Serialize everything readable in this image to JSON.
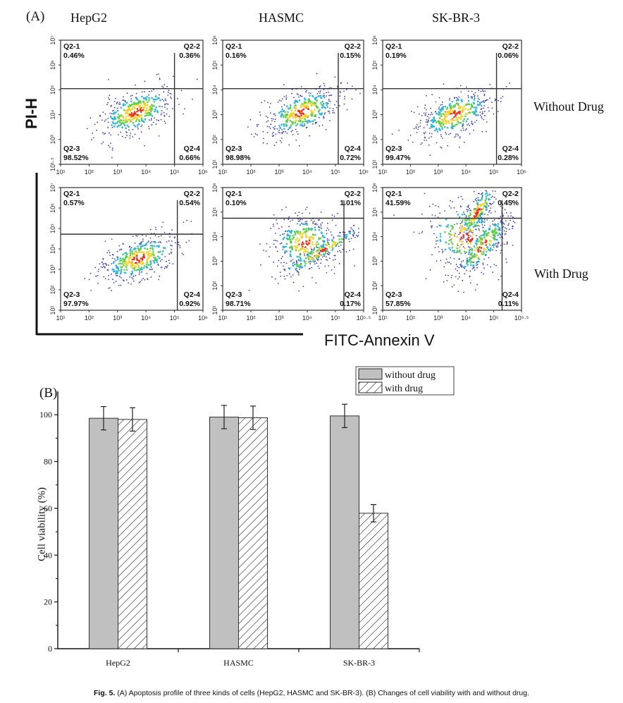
{
  "figure": {
    "panel_a_label": "(A)",
    "panel_b_label": "(B)",
    "columns": [
      "HepG2",
      "HASMC",
      "SK-BR-3"
    ],
    "rows": [
      "Without Drug",
      "With Drug"
    ],
    "y_axis_label": "PI-H",
    "x_axis_label": "FITC-Annexin V",
    "caption_bold": "Fig. 5.",
    "caption_text": " (A) Apoptosis profile of three kinds of cells (HepG2, HASMC and SK-BR-3). (B) Changes of cell viability with and without drug."
  },
  "chart_data": [
    {
      "type": "scatter",
      "title": "Flow cytometry apoptosis profiles (Annexin V / PI)",
      "xlabel": "FITC-Annexin V",
      "ylabel": "PI-H",
      "panels": [
        {
          "cell": "HepG2",
          "condition": "Without Drug",
          "x_ticks": [
            "10¹",
            "10²",
            "10³",
            "10⁴",
            "10⁵",
            "10⁶"
          ],
          "y_ticks": [
            "10¹·⁵",
            "10³",
            "10⁴",
            "10⁵",
            "10⁶",
            "10⁷"
          ],
          "quadrants": [
            {
              "name": "Q2-1",
              "value": "0.46%"
            },
            {
              "name": "Q2-2",
              "value": "0.36%"
            },
            {
              "name": "Q2-3",
              "value": "98.52%"
            },
            {
              "name": "Q2-4",
              "value": "0.66%"
            }
          ]
        },
        {
          "cell": "HASMC",
          "condition": "Without Drug",
          "x_ticks": [
            "10¹",
            "10²",
            "10³",
            "10⁴",
            "10⁵",
            "10⁶"
          ],
          "y_ticks": [
            "10¹",
            "10²",
            "10³",
            "10⁴",
            "10⁵",
            "10⁶"
          ],
          "quadrants": [
            {
              "name": "Q2-1",
              "value": "0.16%"
            },
            {
              "name": "Q2-2",
              "value": "0.15%"
            },
            {
              "name": "Q2-3",
              "value": "98.98%"
            },
            {
              "name": "Q2-4",
              "value": "0.72%"
            }
          ]
        },
        {
          "cell": "SK-BR-3",
          "condition": "Without Drug",
          "x_ticks": [
            "10¹",
            "10²",
            "10³",
            "10⁴",
            "10⁵",
            "10⁶"
          ],
          "y_ticks": [
            "10¹",
            "10²",
            "10³",
            "10⁴",
            "10⁵",
            "10⁶"
          ],
          "quadrants": [
            {
              "name": "Q2-1",
              "value": "0.19%"
            },
            {
              "name": "Q2-2",
              "value": "0.06%"
            },
            {
              "name": "Q2-3",
              "value": "99.47%"
            },
            {
              "name": "Q2-4",
              "value": "0.28%"
            }
          ]
        },
        {
          "cell": "HepG2",
          "condition": "With Drug",
          "x_ticks": [
            "10¹",
            "10²",
            "10³",
            "10⁴",
            "10⁵",
            "10⁶"
          ],
          "y_ticks": [
            "10¹",
            "10²",
            "10³",
            "10⁴",
            "10⁵",
            "10⁶",
            "10⁷"
          ],
          "quadrants": [
            {
              "name": "Q2-1",
              "value": "0.57%"
            },
            {
              "name": "Q2-2",
              "value": "0.54%"
            },
            {
              "name": "Q2-3",
              "value": "97.97%"
            },
            {
              "name": "Q2-4",
              "value": "0.92%"
            }
          ]
        },
        {
          "cell": "HASMC",
          "condition": "With Drug",
          "x_ticks": [
            "10¹",
            "10²",
            "10³",
            "10⁴",
            "10⁵",
            "10⁵·⁵"
          ],
          "y_ticks": [
            "10¹",
            "10²",
            "10³",
            "10⁴",
            "10⁵",
            "10⁶"
          ],
          "quadrants": [
            {
              "name": "Q2-1",
              "value": "0.10%"
            },
            {
              "name": "Q2-2",
              "value": "1.01%"
            },
            {
              "name": "Q2-3",
              "value": "98.71%"
            },
            {
              "name": "Q2-4",
              "value": "0.17%"
            }
          ]
        },
        {
          "cell": "SK-BR-3",
          "condition": "With Drug",
          "x_ticks": [
            "10¹",
            "10²",
            "10³",
            "10⁴",
            "10⁵",
            "10⁵·⁵"
          ],
          "y_ticks": [
            "10¹",
            "10²",
            "10³",
            "10⁴",
            "10⁵",
            "10⁶"
          ],
          "quadrants": [
            {
              "name": "Q2-1",
              "value": "41.59%"
            },
            {
              "name": "Q2-2",
              "value": "0.45%"
            },
            {
              "name": "Q2-3",
              "value": "57.85%"
            },
            {
              "name": "Q2-4",
              "value": "0.11%"
            }
          ]
        }
      ]
    },
    {
      "type": "bar",
      "title": "",
      "xlabel": "",
      "ylabel": "Cell viability (%)",
      "ylim": [
        0,
        110
      ],
      "yticks": [
        0,
        20,
        40,
        60,
        80,
        100
      ],
      "grid": false,
      "legend_position": "top-right",
      "categories": [
        "HepG2",
        "HASMC",
        "SK-BR-3"
      ],
      "series": [
        {
          "name": "without drug",
          "values": [
            98.5,
            99.0,
            99.5
          ],
          "errors": [
            5.0,
            5.0,
            5.0
          ],
          "fill": "#c0c0c0",
          "pattern": "solid"
        },
        {
          "name": "with drug",
          "values": [
            98.0,
            98.7,
            57.9
          ],
          "errors": [
            5.0,
            5.0,
            3.7
          ],
          "fill": "#ffffff",
          "pattern": "hatch"
        }
      ]
    }
  ]
}
